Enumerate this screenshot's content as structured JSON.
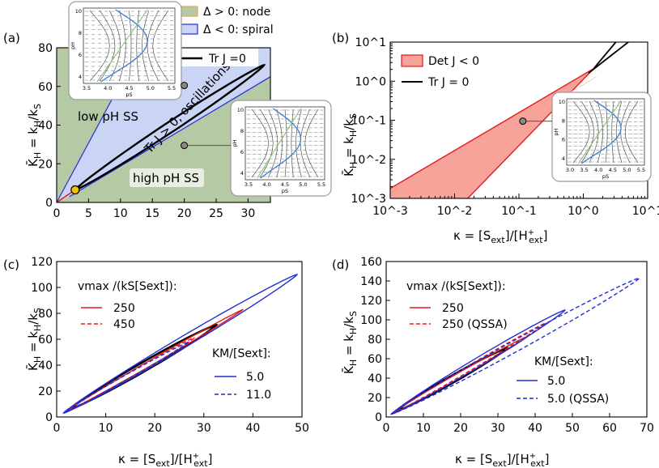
{
  "colors": {
    "node": "#b5c9a5",
    "spiral": "#cad4f5",
    "red": "#e31a1c",
    "blue": "#1f2ed6",
    "det_fill": "#f7a39a",
    "fixed": "#f2c200"
  },
  "chart_data": [
    {
      "type": "line",
      "panel": "(a)",
      "xlabel": "κ = [S_ext]/[H+_ext]",
      "ylabel": "K̄H = kH/kS",
      "xlim": [
        0,
        33.5
      ],
      "ylim": [
        0,
        80
      ],
      "xticks": [
        0,
        5,
        10,
        15,
        20,
        25,
        30
      ],
      "yticks": [
        0,
        20,
        40,
        60,
        80
      ],
      "legend": [
        {
          "label": "Δ > 0: node"
        },
        {
          "label": "Δ < 0: spiral"
        },
        {
          "label": "Tr J =0"
        }
      ],
      "annotations": [
        "low pH SS",
        "high pH SS",
        "Tr J > 0, oscillations"
      ],
      "hopf_ellipse": {
        "start": [
          2.9,
          6.5
        ],
        "end": [
          32.5,
          71
        ],
        "half_width": 3.0
      },
      "spiral_region": {
        "upper": [
          [
            0,
            0
          ],
          [
            13,
            80
          ]
        ],
        "lower": [
          [
            2,
            3
          ],
          [
            33.5,
            65
          ]
        ]
      },
      "marker": {
        "x": 2.9,
        "y": 6.5
      },
      "inset_points": [
        {
          "x": 20,
          "y": 60.5
        },
        {
          "x": 20,
          "y": 29.5
        }
      ]
    },
    {
      "type": "area",
      "panel": "(b)",
      "xlabel": "κ = [S_ext]/[H+_ext]",
      "ylabel": "K̄H = kH/kS",
      "xscale": "log",
      "yscale": "log",
      "xlim": [
        0.001,
        10
      ],
      "ylim": [
        0.001,
        10
      ],
      "xtick_labels": [
        "10^-3",
        "10^-2",
        "10^-1",
        "10^0",
        "10^1"
      ],
      "ytick_labels": [
        "10^-3",
        "10^-2",
        "10^-1",
        "10^0",
        "10^1"
      ],
      "legend": [
        {
          "label": "Det J < 0"
        },
        {
          "label": "Tr J = 0"
        }
      ],
      "det_region": {
        "upper": [
          [
            0.001,
            0.0018
          ],
          [
            1.45,
            2.1
          ]
        ],
        "lower": [
          [
            0.016,
            0.001
          ],
          [
            1.45,
            2.1
          ]
        ]
      },
      "trj_branches": [
        [
          [
            1.2,
            1.6
          ],
          [
            5,
            10
          ]
        ],
        [
          [
            1.45,
            2.1
          ],
          [
            3.2,
            10
          ]
        ]
      ],
      "marker": {
        "x": 0.115,
        "y": 0.095
      }
    },
    {
      "type": "line",
      "panel": "(c)",
      "xlabel": "κ = [S_ext]/[H+_ext]",
      "ylabel": "K̄H = kH/kS",
      "xlim": [
        0,
        50
      ],
      "ylim": [
        0,
        120
      ],
      "xticks": [
        0,
        10,
        20,
        30,
        40,
        50
      ],
      "yticks": [
        0,
        20,
        40,
        60,
        80,
        100,
        120
      ],
      "legend_title_1": "vmax /(kS[Sext]):",
      "legend_title_2": "KM/[Sext]:",
      "series": [
        {
          "name": "baseline",
          "legend": false,
          "color": "black",
          "dashed": false,
          "lw": 2.6,
          "start": [
            2.9,
            6.5
          ],
          "end": [
            32.5,
            71
          ],
          "hw": 2.6
        },
        {
          "name": "250",
          "legend": true,
          "color": "red",
          "dashed": false,
          "lw": 1.4,
          "start": [
            1.6,
            3.5
          ],
          "end": [
            38,
            83
          ],
          "hw": 1.5
        },
        {
          "name": "450",
          "legend": true,
          "color": "red",
          "dashed": true,
          "lw": 1.4,
          "start": [
            2.2,
            4.5
          ],
          "end": [
            28,
            61
          ],
          "hw": 1.6
        },
        {
          "name": "5.0",
          "legend": true,
          "color": "blue",
          "dashed": false,
          "lw": 1.4,
          "start": [
            1.4,
            3.0
          ],
          "end": [
            49,
            110
          ],
          "hw": 3.2
        },
        {
          "name": "11.0",
          "legend": true,
          "color": "blue",
          "dashed": true,
          "lw": 1.4,
          "start": [
            2.0,
            4.5
          ],
          "end": [
            27,
            58
          ],
          "hw": 1.4
        }
      ]
    },
    {
      "type": "line",
      "panel": "(d)",
      "xlabel": "κ = [S_ext]/[H+_ext]",
      "ylabel": "K̄H = kH/kS",
      "xlim": [
        0,
        70
      ],
      "ylim": [
        0,
        160
      ],
      "xticks": [
        0,
        10,
        20,
        30,
        40,
        50,
        60,
        70
      ],
      "yticks": [
        0,
        20,
        40,
        60,
        80,
        100,
        120,
        140,
        160
      ],
      "legend_title_1": "vmax /(kS[Sext]):",
      "legend_title_2": "KM/[Sext]:",
      "series": [
        {
          "name": "baseline",
          "legend": false,
          "color": "black",
          "dashed": false,
          "lw": 2.6,
          "start": [
            2.9,
            6.5
          ],
          "end": [
            32.5,
            71
          ],
          "hw": 2.0
        },
        {
          "name": "250",
          "legend": true,
          "color": "red",
          "dashed": false,
          "lw": 1.4,
          "start": [
            1.6,
            3.5
          ],
          "end": [
            38,
            83
          ],
          "hw": 1.5
        },
        {
          "name": "250 (QSSA)",
          "legend": true,
          "color": "red",
          "dashed": true,
          "lw": 1.4,
          "start": [
            1.6,
            3.5
          ],
          "end": [
            43,
            97
          ],
          "hw": 1.5
        },
        {
          "name": "5.0",
          "legend": true,
          "color": "blue",
          "dashed": false,
          "lw": 1.4,
          "start": [
            1.4,
            3.0
          ],
          "end": [
            48,
            110
          ],
          "hw": 2.6
        },
        {
          "name": "5.0 (QSSA)",
          "legend": true,
          "color": "blue",
          "dashed": true,
          "lw": 1.4,
          "start": [
            1.4,
            3.0
          ],
          "end": [
            68,
            143
          ],
          "hw": 3.2
        }
      ]
    }
  ],
  "insets": [
    {
      "xlabel": "pS",
      "ylabel": "pH",
      "xticks": [
        "3.5",
        "4.0",
        "4.5",
        "5.0",
        "5.5"
      ],
      "yticks": [
        "4",
        "6",
        "8",
        "10"
      ]
    },
    {
      "xlabel": "pS",
      "ylabel": "pH",
      "xticks": [
        "3.5",
        "4.0",
        "4.5",
        "5.0",
        "5.5"
      ],
      "yticks": [
        "4",
        "6",
        "8",
        "10"
      ]
    },
    {
      "xlabel": "pS",
      "ylabel": "pH",
      "xticks": [
        "3.0",
        "3.5",
        "4.0",
        "4.5",
        "5.0",
        "5.5"
      ],
      "yticks": [
        "4",
        "6",
        "8",
        "10"
      ]
    }
  ]
}
